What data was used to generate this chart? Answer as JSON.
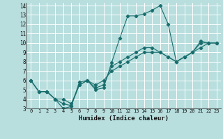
{
  "title": "",
  "xlabel": "Humidex (Indice chaleur)",
  "bg_color": "#b8dede",
  "grid_color": "#ffffff",
  "line_color": "#1a6e6e",
  "xlim": [
    -0.5,
    23.5
  ],
  "ylim": [
    3,
    14.3
  ],
  "xticks": [
    0,
    1,
    2,
    3,
    4,
    5,
    6,
    7,
    8,
    9,
    10,
    11,
    12,
    13,
    14,
    15,
    16,
    17,
    18,
    19,
    20,
    21,
    22,
    23
  ],
  "yticks": [
    3,
    4,
    5,
    6,
    7,
    8,
    9,
    10,
    11,
    12,
    13,
    14
  ],
  "lines": [
    {
      "x": [
        0,
        1,
        2,
        3,
        4,
        5,
        6,
        7,
        8,
        9,
        10,
        11,
        12,
        13,
        14,
        15,
        16,
        17,
        18,
        19,
        20,
        21,
        22,
        23
      ],
      "y": [
        6,
        4.8,
        4.8,
        4,
        3,
        3.2,
        5.8,
        6,
        5,
        5.2,
        7.9,
        10.5,
        12.9,
        12.9,
        13.1,
        13.5,
        14,
        12,
        8,
        8.5,
        9,
        10.2,
        10,
        10
      ]
    },
    {
      "x": [
        0,
        1,
        2,
        3,
        4,
        5,
        6,
        7,
        8,
        9,
        10,
        11,
        12,
        13,
        14,
        15,
        16,
        17,
        18,
        19,
        20,
        21,
        22,
        23
      ],
      "y": [
        6,
        4.8,
        4.8,
        4,
        4,
        3.5,
        5.5,
        6,
        5.5,
        6,
        7,
        7.5,
        8,
        8.5,
        9,
        9,
        9,
        8.5,
        8,
        8.5,
        9,
        10,
        10,
        10
      ]
    },
    {
      "x": [
        0,
        1,
        2,
        3,
        4,
        5,
        6,
        7,
        8,
        9,
        10,
        11,
        12,
        13,
        14,
        15,
        16,
        17,
        18,
        19,
        20,
        21,
        22,
        23
      ],
      "y": [
        6,
        4.8,
        4.8,
        4,
        3.5,
        3.3,
        5.5,
        6,
        5.2,
        5.5,
        7.5,
        8,
        8.5,
        9,
        9.5,
        9.5,
        9,
        8.5,
        8,
        8.5,
        9,
        9.5,
        10,
        10
      ]
    }
  ]
}
